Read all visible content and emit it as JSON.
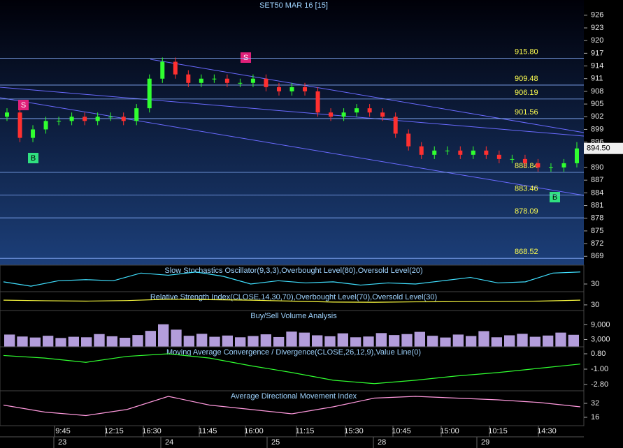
{
  "chart_data": [
    {
      "type": "candlestick",
      "title": "SET50 MAR 16  [15]",
      "open": [
        902,
        903,
        897,
        899,
        901,
        901,
        902,
        901,
        902,
        902,
        901,
        904,
        911,
        915,
        912,
        910,
        911,
        911,
        910,
        910,
        911,
        909,
        908,
        909,
        908,
        903,
        902,
        903,
        904,
        903,
        902,
        898,
        895,
        893,
        894,
        894,
        893,
        894,
        893,
        892,
        892,
        891,
        890,
        890,
        891
      ],
      "high": [
        904,
        904,
        900,
        902,
        902,
        903,
        903,
        903,
        903,
        903,
        905,
        912,
        916,
        916,
        913,
        912,
        912,
        912,
        911,
        912,
        912,
        910,
        910,
        910,
        909,
        904,
        904,
        905,
        905,
        904,
        903,
        899,
        896,
        895,
        895,
        895,
        895,
        895,
        894,
        893,
        893,
        892,
        891,
        892,
        896
      ],
      "low": [
        901,
        896,
        896,
        898,
        900,
        900,
        900,
        900,
        901,
        900,
        900,
        903,
        910,
        911,
        909,
        909,
        910,
        909,
        909,
        909,
        908,
        907,
        907,
        907,
        902,
        901,
        901,
        902,
        902,
        901,
        897,
        894,
        892,
        892,
        893,
        892,
        892,
        892,
        891,
        891,
        890,
        889,
        889,
        889,
        890
      ],
      "close": [
        903,
        897,
        899,
        901,
        901,
        902,
        901,
        902,
        902,
        901,
        904,
        911,
        915,
        912,
        910,
        911,
        911,
        910,
        910,
        911,
        909,
        908,
        909,
        908,
        903,
        902,
        903,
        904,
        903,
        902,
        898,
        895,
        893,
        894,
        894,
        893,
        894,
        893,
        892,
        892,
        891,
        890,
        890,
        891,
        894.5
      ],
      "levels": [
        915.8,
        909.48,
        906.19,
        901.56,
        888.84,
        883.46,
        878.09,
        868.52
      ],
      "level_labels": [
        "915.80",
        "909.48",
        "906.19",
        "901.56",
        "888.84",
        "883.46",
        "878.09",
        "868.52"
      ],
      "last_price": 894.5,
      "last_price_label": "894.50",
      "signals": [
        "S",
        "B",
        "S",
        "B"
      ],
      "ylim": [
        866.9,
        929.6
      ],
      "yticks": [
        926,
        923,
        920,
        917,
        914,
        911,
        908,
        905,
        902,
        899,
        896,
        890,
        887,
        884,
        881,
        878,
        875,
        872,
        869
      ],
      "time_labels": [
        "9:45",
        "12:15",
        "16:30",
        "11:45",
        "16:00",
        "11:15",
        "15:30",
        "10:45",
        "15:00",
        "10:15",
        "14:30"
      ],
      "date_labels": [
        "23",
        "24",
        "25",
        "28",
        "29"
      ]
    },
    {
      "type": "line",
      "title": "Slow Stochastics Oscillator(9,3,3),Overbought Level(80),Oversold Level(20)",
      "values": [
        40,
        20,
        45,
        50,
        45,
        80,
        70,
        85,
        65,
        30,
        45,
        35,
        40,
        25,
        35,
        30,
        45,
        60,
        35,
        40,
        80,
        85
      ],
      "color": "#40e0ff",
      "ylim": [
        -5,
        116
      ],
      "yticks": [
        30
      ]
    },
    {
      "type": "line",
      "title": "Relative Strength Index(CLOSE,14,30,70),Overbought Level(70),Oversold Level(30)",
      "values": [
        55,
        52,
        50,
        53,
        60,
        58,
        55,
        50,
        45,
        44,
        46,
        47,
        48,
        50,
        55
      ],
      "color": "#ffff40",
      "ylim": [
        0,
        100
      ],
      "yticks": [
        30
      ]
    },
    {
      "type": "bar",
      "title": "Buy/Sell Volume Analysis",
      "values": [
        5000,
        4200,
        3800,
        4500,
        3600,
        4100,
        3900,
        5200,
        4300,
        3700,
        4800,
        6500,
        9200,
        7000,
        4500,
        5300,
        4100,
        4600,
        3900,
        4400,
        5100,
        4000,
        6200,
        5800,
        4700,
        4300,
        5500,
        3900,
        4200,
        5600,
        4800,
        5200,
        6100,
        4500,
        3800,
        5000,
        4400,
        6400,
        3900,
        4700,
        5300,
        4100,
        4600,
        5800,
        4900
      ],
      "color": "#b39ddb",
      "ylim": [
        0,
        14800
      ],
      "yticks": [
        {
          "value": 9000,
          "label": "9,000"
        },
        {
          "value": 3000,
          "label": "3,000"
        }
      ]
    },
    {
      "type": "line",
      "title": "Moving Average Convergence / Divergence(CLOSE,26,12,9),Value Line(0)",
      "values": [
        0.6,
        0.3,
        -0.2,
        0.5,
        0.8,
        0.3,
        -0.6,
        -1.4,
        -2.3,
        -2.7,
        -2.3,
        -1.8,
        -1.4,
        -0.9,
        -0.4
      ],
      "color": "#30ff30",
      "ylim": [
        -3.54,
        1.62
      ],
      "yticks": [
        {
          "value": 0.8,
          "label": "0.80"
        },
        {
          "value": -1,
          "label": "-1.00"
        },
        {
          "value": -2.8,
          "label": "-2.80"
        }
      ]
    },
    {
      "type": "line",
      "title": "Average Directional Movement Index",
      "values": [
        30,
        22,
        18,
        25,
        40,
        30,
        25,
        20,
        28,
        38,
        40,
        38,
        36,
        33,
        28
      ],
      "color": "#ff99dd",
      "ylim": [
        6.4,
        46.4
      ],
      "yticks": [
        32,
        16
      ]
    }
  ]
}
